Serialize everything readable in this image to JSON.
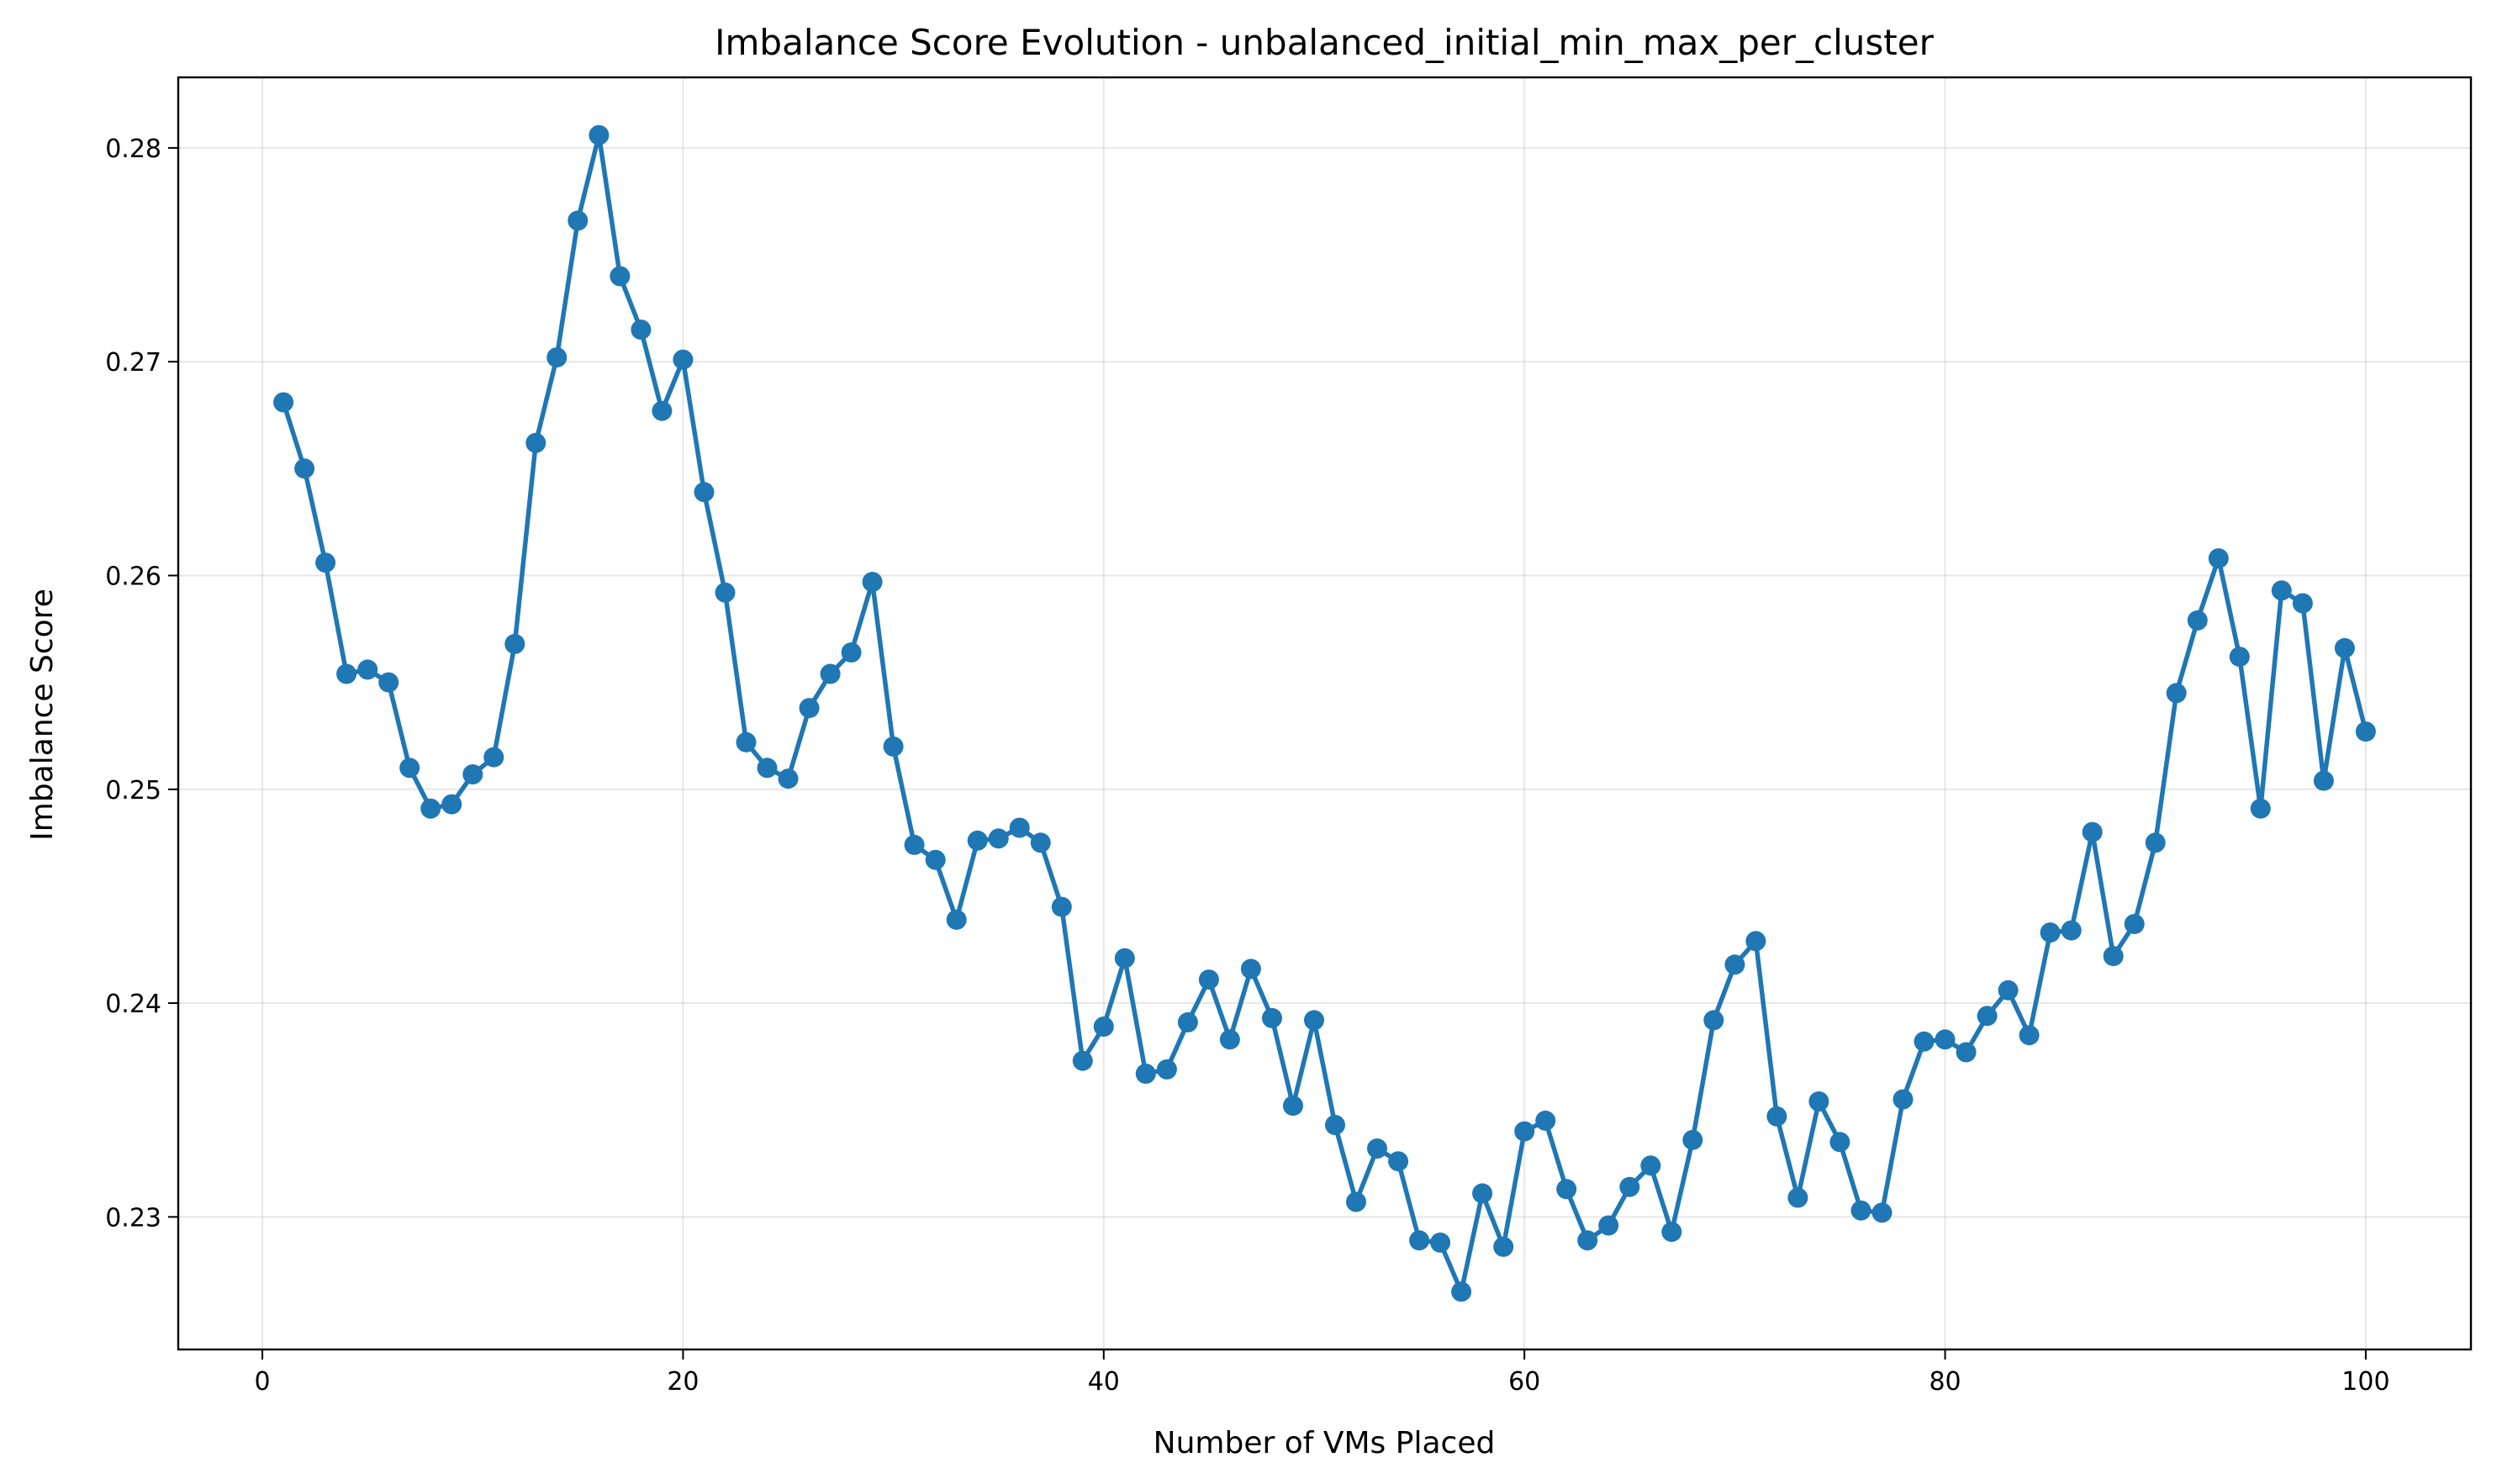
{
  "chart_data": {
    "type": "line",
    "title": "Imbalance Score Evolution - unbalanced_initial_min_max_per_cluster",
    "xlabel": "Number of VMs Placed",
    "ylabel": "Imbalance Score",
    "xlim": [
      -4,
      105
    ],
    "ylim": [
      0.2238,
      0.2833
    ],
    "xticks": [
      0,
      20,
      40,
      60,
      80,
      100
    ],
    "yticks": [
      0.23,
      0.24,
      0.25,
      0.26,
      0.27,
      0.28
    ],
    "xtick_labels": [
      "0",
      "20",
      "40",
      "60",
      "80",
      "100"
    ],
    "ytick_labels": [
      "0.23",
      "0.24",
      "0.25",
      "0.26",
      "0.27",
      "0.28"
    ],
    "grid": true,
    "colors": {
      "line": "#1f77b4"
    },
    "series": [
      {
        "x": [
          1,
          2,
          3,
          4,
          5,
          6,
          7,
          8,
          9,
          10,
          11,
          12,
          13,
          14,
          15,
          16,
          17,
          18,
          19,
          20,
          21,
          22,
          23,
          24,
          25,
          26,
          27,
          28,
          29,
          30,
          31,
          32,
          33,
          34,
          35,
          36,
          37,
          38,
          39,
          40,
          41,
          42,
          43,
          44,
          45,
          46,
          47,
          48,
          49,
          50,
          51,
          52,
          53,
          54,
          55,
          56,
          57,
          58,
          59,
          60,
          61,
          62,
          63,
          64,
          65,
          66,
          67,
          68,
          69,
          70,
          71,
          72,
          73,
          74,
          75,
          76,
          77,
          78,
          79,
          80,
          81,
          82,
          83,
          84,
          85,
          86,
          87,
          88,
          89,
          90,
          91,
          92,
          93,
          94,
          95,
          96,
          97,
          98,
          99,
          100
        ],
        "values": [
          0.2681,
          0.265,
          0.2606,
          0.2554,
          0.2556,
          0.255,
          0.251,
          0.2491,
          0.2493,
          0.2507,
          0.2515,
          0.2568,
          0.2662,
          0.2702,
          0.2766,
          0.2806,
          0.274,
          0.2715,
          0.2677,
          0.2701,
          0.2639,
          0.2592,
          0.2522,
          0.251,
          0.2505,
          0.2538,
          0.2554,
          0.2564,
          0.2597,
          0.252,
          0.2474,
          0.2467,
          0.2439,
          0.2476,
          0.2477,
          0.2482,
          0.2475,
          0.2445,
          0.2373,
          0.2389,
          0.2421,
          0.2367,
          0.2369,
          0.2391,
          0.2411,
          0.2383,
          0.2416,
          0.2393,
          0.2352,
          0.2392,
          0.2343,
          0.2307,
          0.2332,
          0.2326,
          0.2289,
          0.2288,
          0.2265,
          0.2311,
          0.2286,
          0.234,
          0.2345,
          0.2313,
          0.2289,
          0.2296,
          0.2314,
          0.2324,
          0.2293,
          0.2336,
          0.2392,
          0.2418,
          0.2429,
          0.2347,
          0.2309,
          0.2354,
          0.2335,
          0.2303,
          0.2302,
          0.2355,
          0.2382,
          0.2383,
          0.2377,
          0.2394,
          0.2406,
          0.2385,
          0.2433,
          0.2434,
          0.248,
          0.2422,
          0.2437,
          0.2475,
          0.2545,
          0.2579,
          0.2608,
          0.2562,
          0.2491,
          0.2593,
          0.2587,
          0.2504,
          0.2566,
          0.2527
        ]
      }
    ]
  }
}
